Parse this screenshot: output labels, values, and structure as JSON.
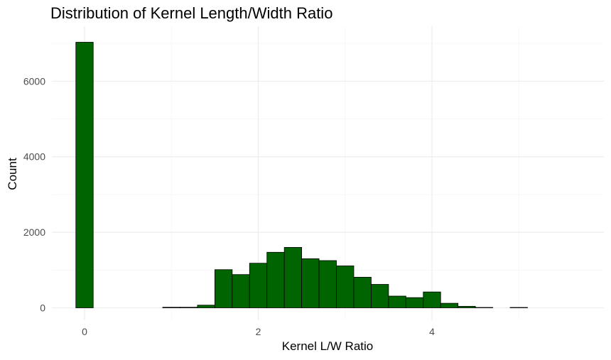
{
  "chart_data": {
    "type": "bar",
    "title": "Distribution of Kernel Length/Width Ratio",
    "xlabel": "Kernel L/W Ratio",
    "ylabel": "Count",
    "xlim": [
      -0.2,
      5.9
    ],
    "ylim": [
      0,
      7400
    ],
    "x_ticks": [
      0,
      2,
      4
    ],
    "y_ticks": [
      0,
      2000,
      4000,
      6000
    ],
    "bin_width": 0.2,
    "bins": [
      {
        "x": 0.0,
        "count": 7030
      },
      {
        "x": 0.2,
        "count": 0
      },
      {
        "x": 0.4,
        "count": 0
      },
      {
        "x": 0.6,
        "count": 0
      },
      {
        "x": 0.8,
        "count": 0
      },
      {
        "x": 1.0,
        "count": 15
      },
      {
        "x": 1.2,
        "count": 15
      },
      {
        "x": 1.4,
        "count": 70
      },
      {
        "x": 1.6,
        "count": 1010
      },
      {
        "x": 1.8,
        "count": 880
      },
      {
        "x": 2.0,
        "count": 1180
      },
      {
        "x": 2.2,
        "count": 1470
      },
      {
        "x": 2.4,
        "count": 1600
      },
      {
        "x": 2.6,
        "count": 1300
      },
      {
        "x": 2.8,
        "count": 1250
      },
      {
        "x": 3.0,
        "count": 1110
      },
      {
        "x": 3.2,
        "count": 810
      },
      {
        "x": 3.4,
        "count": 620
      },
      {
        "x": 3.6,
        "count": 310
      },
      {
        "x": 3.8,
        "count": 270
      },
      {
        "x": 4.0,
        "count": 420
      },
      {
        "x": 4.2,
        "count": 120
      },
      {
        "x": 4.4,
        "count": 40
      },
      {
        "x": 4.6,
        "count": 10
      },
      {
        "x": 4.8,
        "count": 0
      },
      {
        "x": 5.0,
        "count": 10
      },
      {
        "x": 5.2,
        "count": 0
      },
      {
        "x": 5.4,
        "count": 0
      },
      {
        "x": 5.6,
        "count": 0
      }
    ],
    "grid": true,
    "legend": "none",
    "bar_color": "#006400",
    "bar_outline": "#000000"
  }
}
